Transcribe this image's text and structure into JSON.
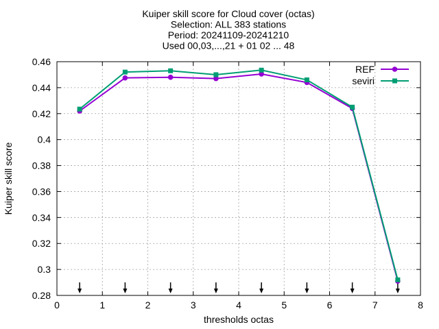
{
  "chart_data": {
    "type": "line",
    "title_lines": [
      "Kuiper skill score  for Cloud cover (octas)",
      "Selection: ALL    383 stations",
      "Period: 20241109-20241210",
      "Used 00,03,...,21 + 01 02 ... 48"
    ],
    "xlabel": "thresholds octas",
    "ylabel": "Kuiper skill score",
    "xlim": [
      0,
      8
    ],
    "ylim": [
      0.28,
      0.46
    ],
    "xticks": [
      0,
      1,
      2,
      3,
      4,
      5,
      6,
      7,
      8
    ],
    "yticks": [
      0.28,
      0.3,
      0.32,
      0.34,
      0.36,
      0.38,
      0.4,
      0.42,
      0.44,
      0.46
    ],
    "ytick_labels": [
      "0.28",
      "0.3",
      "0.32",
      "0.34",
      "0.36",
      "0.38",
      "0.4",
      "0.42",
      "0.44",
      "0.46"
    ],
    "grid": true,
    "legend_position": "top-right",
    "x": [
      0.5,
      1.5,
      2.5,
      3.5,
      4.5,
      5.5,
      6.5,
      7.5
    ],
    "series": [
      {
        "name": "REF",
        "color": "#9400d3",
        "marker": "circle",
        "values": [
          0.422,
          0.4475,
          0.448,
          0.447,
          0.4505,
          0.444,
          0.424,
          0.291
        ]
      },
      {
        "name": "seviri",
        "color": "#009e73",
        "marker": "square",
        "values": [
          0.4235,
          0.452,
          0.453,
          0.45,
          0.4535,
          0.446,
          0.425,
          0.292
        ]
      }
    ],
    "arrow_markers_x": [
      0.5,
      1.5,
      2.5,
      3.5,
      4.5,
      5.5,
      6.5,
      7.5
    ]
  }
}
